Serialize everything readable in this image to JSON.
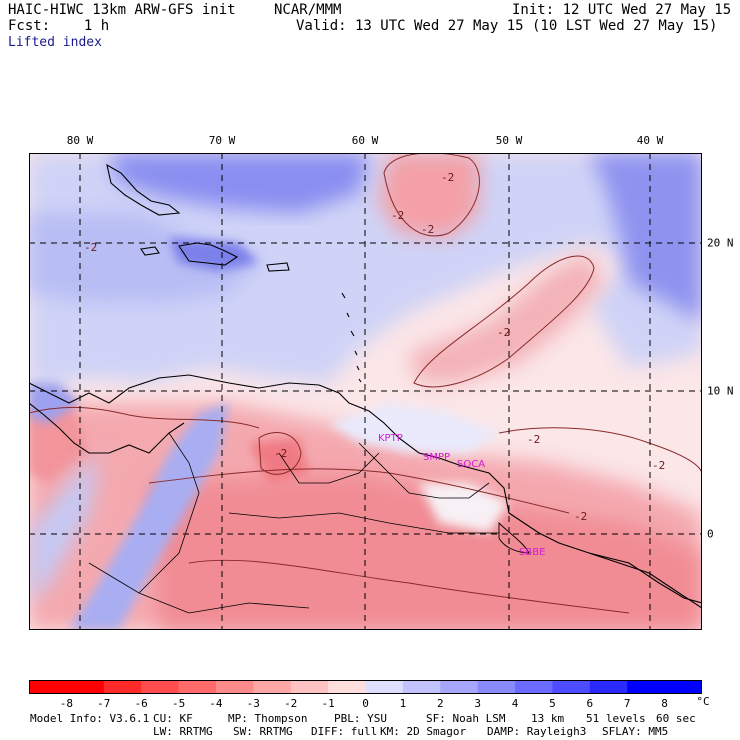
{
  "header": {
    "title": "HAIC-HIWC 13km ARW-GFS init",
    "org": "NCAR/MMM",
    "init": "Init: 12 UTC Wed 27 May 15",
    "fcst": "Fcst:    1 h",
    "valid": "Valid: 13 UTC Wed 27 May 15 (10 LST Wed 27 May 15)",
    "field": "Lifted index"
  },
  "axes": {
    "lon_labels": [
      "80 W",
      "70 W",
      "60 W",
      "50 W",
      "40 W"
    ],
    "lat_labels": [
      "20 N",
      "10 N",
      "0"
    ]
  },
  "colorbar": {
    "labels": [
      "-8",
      "-7",
      "-6",
      "-5",
      "-4",
      "-3",
      "-2",
      "-1",
      "0",
      "1",
      "2",
      "3",
      "4",
      "5",
      "6",
      "7",
      "8"
    ],
    "unit": "°C",
    "colors": [
      "#ff0000",
      "#ff2a2a",
      "#ff4d4d",
      "#ff6b6b",
      "#ff8a8a",
      "#ffa6a6",
      "#ffc2c2",
      "#ffdede",
      "#ffffff",
      "#dedeff",
      "#c2c2ff",
      "#a6a6ff",
      "#8a8aff",
      "#6b6bff",
      "#4d4dff",
      "#2a2aff",
      "#0000ff"
    ]
  },
  "contour_labels": [
    "-2",
    "-2",
    "-2",
    "-2",
    "-2",
    "-2",
    "-2",
    "-2",
    "-2"
  ],
  "station_labels": [
    "KPTP",
    "SMPP",
    "SOCA",
    "SBBE"
  ],
  "footer": {
    "line1": [
      "Model Info: V3.6.1",
      "CU: KF",
      "MP: Thompson",
      "PBL: YSU",
      "SF: Noah LSM",
      "13 km",
      "51 levels",
      "60 sec"
    ],
    "line2": [
      "LW: RRTMG",
      "SW: RRTMG",
      "DIFF: full",
      "KM: 2D Smagor",
      "DAMP: Rayleigh3",
      "SFLAY: MM5"
    ]
  }
}
